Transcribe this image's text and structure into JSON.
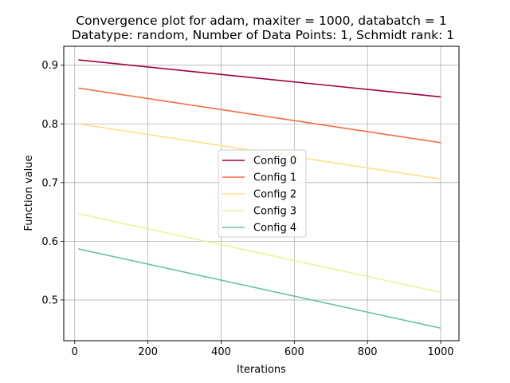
{
  "chart_data": {
    "type": "line",
    "title_line1": "Convergence plot for adam, maxiter = 1000, databatch = 1",
    "title_line2": "Datatype: random, Number of Data Points: 1, Schmidt rank: 1",
    "xlabel": "Iterations",
    "ylabel": "Function value",
    "xlim": [
      -30,
      1050
    ],
    "ylim": [
      0.4306,
      0.9322
    ],
    "xticks": [
      0,
      200,
      400,
      600,
      800,
      1000
    ],
    "yticks": [
      0.5,
      0.6,
      0.7,
      0.8,
      0.9
    ],
    "ytick_labels": [
      "0.5",
      "0.6",
      "0.7",
      "0.8",
      "0.9"
    ],
    "grid": true,
    "legend_position": "center",
    "series": [
      {
        "name": "Config 0",
        "color": "#9e0142",
        "x": [
          10,
          1000
        ],
        "y": [
          0.909,
          0.846
        ]
      },
      {
        "name": "Config 1",
        "color": "#f46d43",
        "x": [
          10,
          1000
        ],
        "y": [
          0.861,
          0.768
        ]
      },
      {
        "name": "Config 2",
        "color": "#fee08b",
        "x": [
          10,
          1000
        ],
        "y": [
          0.8,
          0.706
        ]
      },
      {
        "name": "Config 3",
        "color": "#e6f598",
        "x": [
          10,
          1000
        ],
        "y": [
          0.647,
          0.513
        ]
      },
      {
        "name": "Config 4",
        "color": "#66c2a5",
        "x": [
          10,
          1000
        ],
        "y": [
          0.587,
          0.452
        ]
      }
    ]
  }
}
